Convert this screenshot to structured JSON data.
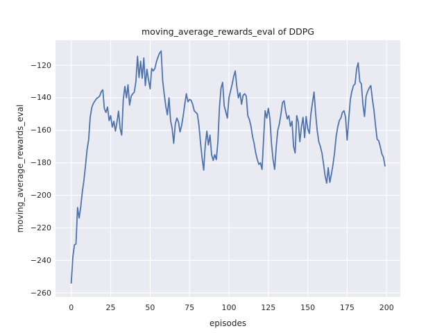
{
  "figure": {
    "title": "moving_average_rewards_eval of DDPG",
    "xlabel": "episodes",
    "ylabel": "moving_average_rewards_eval"
  },
  "chart_data": {
    "type": "line",
    "title": "moving_average_rewards_eval of DDPG",
    "xlabel": "episodes",
    "ylabel": "moving_average_rewards_eval",
    "legend": null,
    "grid": true,
    "plot_bg_color": "#eaeaf2",
    "grid_color": "#ffffff",
    "line_color": "#4c72b0",
    "xlim": [
      -10,
      208.7
    ],
    "ylim": [
      -262.5,
      -104.6
    ],
    "x_ticks": [
      0,
      25,
      50,
      75,
      100,
      125,
      150,
      175,
      200
    ],
    "x_tick_labels": [
      "0",
      "25",
      "50",
      "75",
      "100",
      "125",
      "150",
      "175",
      "200"
    ],
    "y_ticks": [
      -120,
      -140,
      -160,
      -180,
      -200,
      -220,
      -240,
      -260
    ],
    "y_tick_labels": [
      "−120",
      "−140",
      "−160",
      "−180",
      "−200",
      "−220",
      "−240",
      "−260"
    ],
    "series": [
      {
        "name": "moving_average_rewards_eval",
        "x_mode": "index",
        "values": [
          -254,
          -238,
          -230.5,
          -230,
          -207.5,
          -214,
          -207,
          -198,
          -191,
          -182,
          -172,
          -166,
          -152,
          -146,
          -143.5,
          -142,
          -140.5,
          -139.8,
          -139,
          -136.3,
          -135.1,
          -146.6,
          -149,
          -145.7,
          -154,
          -151,
          -158,
          -154.5,
          -160.5,
          -155,
          -148.2,
          -159,
          -163,
          -141,
          -133,
          -140,
          -132,
          -144.5,
          -139,
          -137.5,
          -136.5,
          -130,
          -114.5,
          -127.5,
          -117.5,
          -128,
          -115.5,
          -132.5,
          -122.5,
          -129,
          -134.5,
          -122,
          -123.5,
          -122,
          -118,
          -115,
          -112.5,
          -111.2,
          -129.5,
          -138,
          -145.5,
          -150.5,
          -140,
          -154,
          -159,
          -168,
          -156,
          -152.5,
          -155,
          -161,
          -157,
          -151,
          -144,
          -137.5,
          -142.5,
          -141,
          -141.5,
          -144,
          -148,
          -149,
          -150,
          -157,
          -168,
          -177,
          -184.5,
          -169,
          -160.5,
          -169,
          -163,
          -175,
          -178.5,
          -175,
          -178,
          -167,
          -146,
          -134,
          -130.5,
          -145,
          -148.5,
          -152.5,
          -140,
          -136,
          -132,
          -127,
          -123.5,
          -133,
          -140,
          -137,
          -144,
          -138.5,
          -137.5,
          -139,
          -151,
          -153.5,
          -157.5,
          -164,
          -168,
          -174,
          -178,
          -181,
          -180,
          -184,
          -165,
          -148,
          -152.5,
          -146.5,
          -153,
          -168,
          -178,
          -184,
          -170,
          -160,
          -156,
          -150,
          -143,
          -141.8,
          -148.5,
          -153,
          -151,
          -157.5,
          -154.5,
          -170,
          -174,
          -151,
          -155,
          -167,
          -158,
          -152,
          -164.5,
          -151.5,
          -159,
          -162,
          -150,
          -143,
          -136.5,
          -150,
          -160,
          -167,
          -170,
          -174,
          -180.5,
          -188,
          -192.5,
          -183,
          -192,
          -187,
          -181,
          -174,
          -164,
          -158,
          -154,
          -152.5,
          -149,
          -148,
          -152,
          -166,
          -153,
          -141,
          -136,
          -132.5,
          -131.5,
          -122,
          -118.5,
          -130,
          -131.5,
          -144,
          -151.5,
          -139,
          -136,
          -134,
          -132.5,
          -141,
          -147.5,
          -157,
          -165.5,
          -166.5,
          -170,
          -174.5,
          -176.5,
          -182
        ]
      }
    ]
  }
}
